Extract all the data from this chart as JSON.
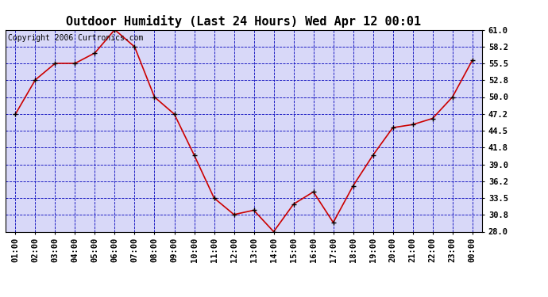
{
  "title": "Outdoor Humidity (Last 24 Hours) Wed Apr 12 00:01",
  "copyright": "Copyright 2006 Curtronics.com",
  "x_labels": [
    "01:00",
    "02:00",
    "03:00",
    "04:00",
    "05:00",
    "06:00",
    "07:00",
    "08:00",
    "09:00",
    "10:00",
    "11:00",
    "12:00",
    "13:00",
    "14:00",
    "15:00",
    "16:00",
    "17:00",
    "18:00",
    "19:00",
    "20:00",
    "21:00",
    "22:00",
    "23:00",
    "00:00"
  ],
  "x_values": [
    1,
    2,
    3,
    4,
    5,
    6,
    7,
    8,
    9,
    10,
    11,
    12,
    13,
    14,
    15,
    16,
    17,
    18,
    19,
    20,
    21,
    22,
    23,
    24
  ],
  "y_values": [
    47.2,
    52.8,
    55.5,
    55.5,
    57.2,
    61.0,
    58.2,
    50.0,
    47.2,
    40.5,
    33.5,
    30.8,
    31.5,
    28.0,
    32.5,
    34.5,
    29.5,
    35.5,
    40.5,
    45.0,
    45.5,
    46.5,
    50.0,
    56.0
  ],
  "ylim": [
    28.0,
    61.0
  ],
  "yticks": [
    28.0,
    30.8,
    33.5,
    36.2,
    39.0,
    41.8,
    44.5,
    47.2,
    50.0,
    52.8,
    55.5,
    58.2,
    61.0
  ],
  "line_color": "#cc0000",
  "marker_color": "#000000",
  "marker_size": 5,
  "bg_color": "#ffffff",
  "plot_bg_color": "#d8d8f8",
  "grid_color": "#0000bb",
  "title_fontsize": 11,
  "copyright_fontsize": 7,
  "tick_fontsize": 7.5
}
